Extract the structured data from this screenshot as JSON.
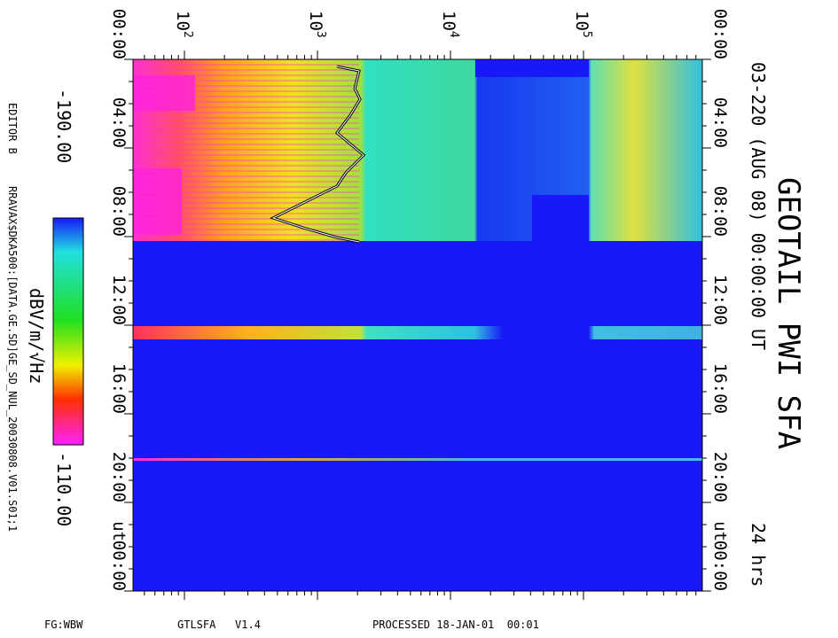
{
  "title": "GEOTAIL PWI SFA",
  "subtitle": "03-220 (AUG 08) 00:00:00 UT",
  "duration": "24 hrs",
  "freq_ticks": [
    {
      "base": "10",
      "exp": "2"
    },
    {
      "base": "10",
      "exp": "3"
    },
    {
      "base": "10",
      "exp": "4"
    },
    {
      "base": "10",
      "exp": "5"
    }
  ],
  "time_ticks": [
    "00:00",
    "04:00",
    "08:00",
    "12:00",
    "16:00",
    "20:00",
    "00:00"
  ],
  "time_unit": "UT",
  "colorbar": {
    "min_label": "-190.00",
    "max_label": "-110.00",
    "unit": "dBV/m/√Hz"
  },
  "editor": "EDITOR B",
  "file": "RRAVAX$DKA500:[DATA.GE.SD]GE_SD_NUL_20030808.V01.S01;1",
  "footer": {
    "fg": "FG:WBW",
    "program": "GTLSFA   V1.4",
    "processed": "PROCESSED 18-JAN-01  00:01"
  }
}
